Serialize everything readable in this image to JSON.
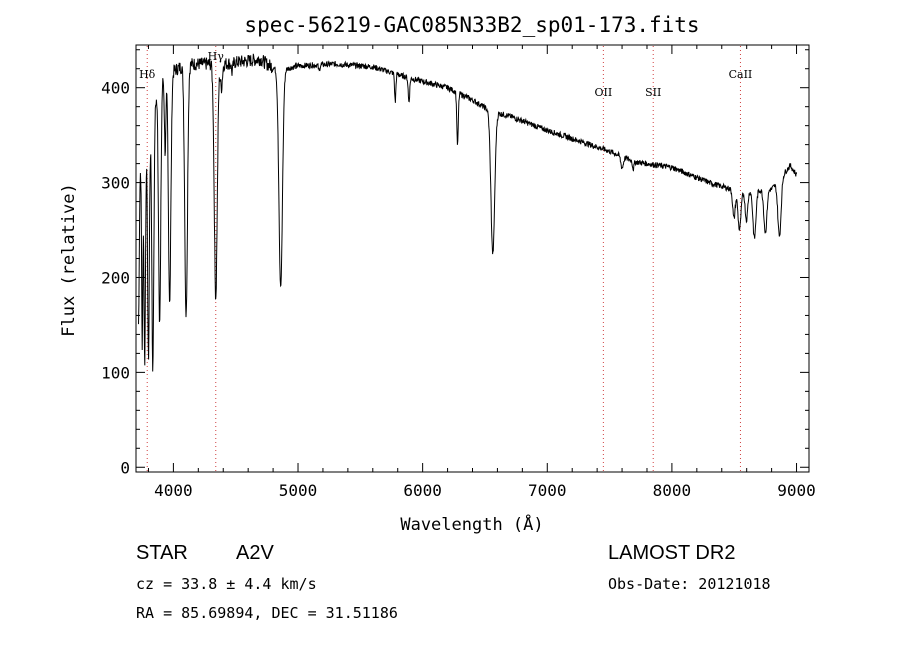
{
  "chart_data": {
    "type": "line",
    "title": "spec-56219-GAC085N33B2_sp01-173.fits",
    "xlabel": "Wavelength (Å)",
    "ylabel": "Flux (relative)",
    "xlim": [
      3700,
      9100
    ],
    "ylim": [
      -5,
      445
    ],
    "xticks": [
      4000,
      5000,
      6000,
      7000,
      8000,
      9000
    ],
    "yticks": [
      0,
      100,
      200,
      300,
      400
    ],
    "grid": false,
    "line_color": "#000000",
    "marker_color": "#d04040",
    "lines": [
      {
        "label": "Hδ",
        "x": 3790
      },
      {
        "label": "Hγ",
        "x": 4340
      },
      {
        "label": "OII",
        "x": 7450
      },
      {
        "label": "SII",
        "x": 7850
      },
      {
        "label": "CaII",
        "x": 8550
      }
    ],
    "continuum": [
      [
        3700,
        300
      ],
      [
        3900,
        410
      ],
      [
        4100,
        425
      ],
      [
        4400,
        425
      ],
      [
        4700,
        430
      ],
      [
        4750,
        425
      ],
      [
        4850,
        418
      ],
      [
        5000,
        423
      ],
      [
        5300,
        425
      ],
      [
        5600,
        422
      ],
      [
        5900,
        410
      ],
      [
        6200,
        400
      ],
      [
        6400,
        387
      ],
      [
        6550,
        375
      ],
      [
        6700,
        370
      ],
      [
        7000,
        355
      ],
      [
        7300,
        342
      ],
      [
        7500,
        333
      ],
      [
        7700,
        322
      ],
      [
        8000,
        316
      ],
      [
        8300,
        300
      ],
      [
        8550,
        290
      ],
      [
        8800,
        293
      ],
      [
        8950,
        318
      ],
      [
        9000,
        308
      ]
    ],
    "absorption": [
      {
        "x": 3720,
        "depth": 160,
        "width": 6
      },
      {
        "x": 3750,
        "depth": 200,
        "width": 5
      },
      {
        "x": 3770,
        "depth": 230,
        "width": 6
      },
      {
        "x": 3800,
        "depth": 240,
        "width": 7
      },
      {
        "x": 3835,
        "depth": 270,
        "width": 8
      },
      {
        "x": 3890,
        "depth": 250,
        "width": 9
      },
      {
        "x": 3934,
        "depth": 80,
        "width": 6
      },
      {
        "x": 3970,
        "depth": 240,
        "width": 10
      },
      {
        "x": 4102,
        "depth": 265,
        "width": 11
      },
      {
        "x": 4340,
        "depth": 245,
        "width": 12
      },
      {
        "x": 4385,
        "depth": 25,
        "width": 8
      },
      {
        "x": 4471,
        "depth": 10,
        "width": 6
      },
      {
        "x": 4861,
        "depth": 230,
        "width": 14
      },
      {
        "x": 5169,
        "depth": 6,
        "width": 6
      },
      {
        "x": 5780,
        "depth": 30,
        "width": 5
      },
      {
        "x": 5890,
        "depth": 25,
        "width": 6
      },
      {
        "x": 6280,
        "depth": 55,
        "width": 6
      },
      {
        "x": 6563,
        "depth": 150,
        "width": 15
      },
      {
        "x": 7600,
        "depth": 12,
        "width": 10
      },
      {
        "x": 7690,
        "depth": 8,
        "width": 6
      },
      {
        "x": 8498,
        "depth": 30,
        "width": 10
      },
      {
        "x": 8542,
        "depth": 40,
        "width": 12
      },
      {
        "x": 8598,
        "depth": 30,
        "width": 10
      },
      {
        "x": 8662,
        "depth": 50,
        "width": 12
      },
      {
        "x": 8750,
        "depth": 45,
        "width": 12
      },
      {
        "x": 8863,
        "depth": 60,
        "width": 13
      }
    ]
  },
  "info": {
    "class": "STAR",
    "subclass": "A2V",
    "survey": "LAMOST DR2",
    "cz": "cz = 33.8 ± 4.4 km/s",
    "obs_date": "Obs-Date: 20121018",
    "coords": "RA =  85.69894, DEC =  31.51186"
  }
}
